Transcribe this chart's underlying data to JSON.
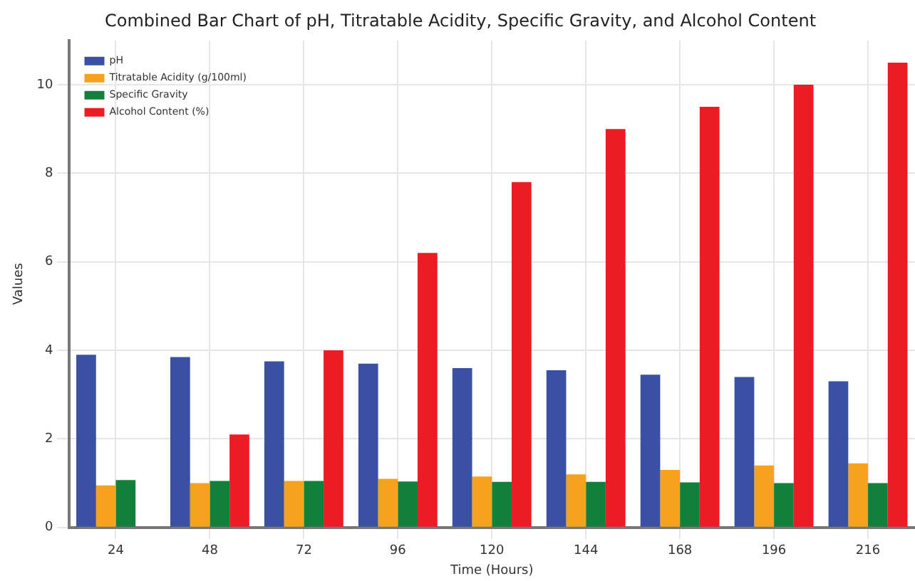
{
  "chart_data": {
    "type": "bar",
    "title": "Combined Bar Chart of pH, Titratable Acidity, Specific Gravity, and Alcohol Content",
    "xlabel": "Time (Hours)",
    "ylabel": "Values",
    "categories": [
      "24",
      "48",
      "72",
      "96",
      "120",
      "144",
      "168",
      "196",
      "216"
    ],
    "series": [
      {
        "name": "pH",
        "color": "#3a50a2",
        "values": [
          3.9,
          3.85,
          3.75,
          3.7,
          3.6,
          3.55,
          3.45,
          3.4,
          3.3
        ]
      },
      {
        "name": "Titratable Acidity (g/100ml)",
        "color": "#f6a21e",
        "values": [
          0.95,
          1.0,
          1.05,
          1.1,
          1.15,
          1.2,
          1.3,
          1.4,
          1.45
        ]
      },
      {
        "name": "Specific Gravity",
        "color": "#127f3b",
        "values": [
          1.07,
          1.05,
          1.05,
          1.04,
          1.03,
          1.03,
          1.02,
          1.0,
          1.0
        ]
      },
      {
        "name": "Alcohol Content (%)",
        "color": "#ec1c24",
        "values": [
          0,
          2.1,
          4.0,
          6.2,
          7.8,
          9.0,
          9.5,
          10.0,
          10.5
        ]
      }
    ],
    "ylim": [
      0,
      11
    ],
    "yticks": [
      0,
      2,
      4,
      6,
      8,
      10
    ],
    "grid": true,
    "legend": "top left"
  }
}
